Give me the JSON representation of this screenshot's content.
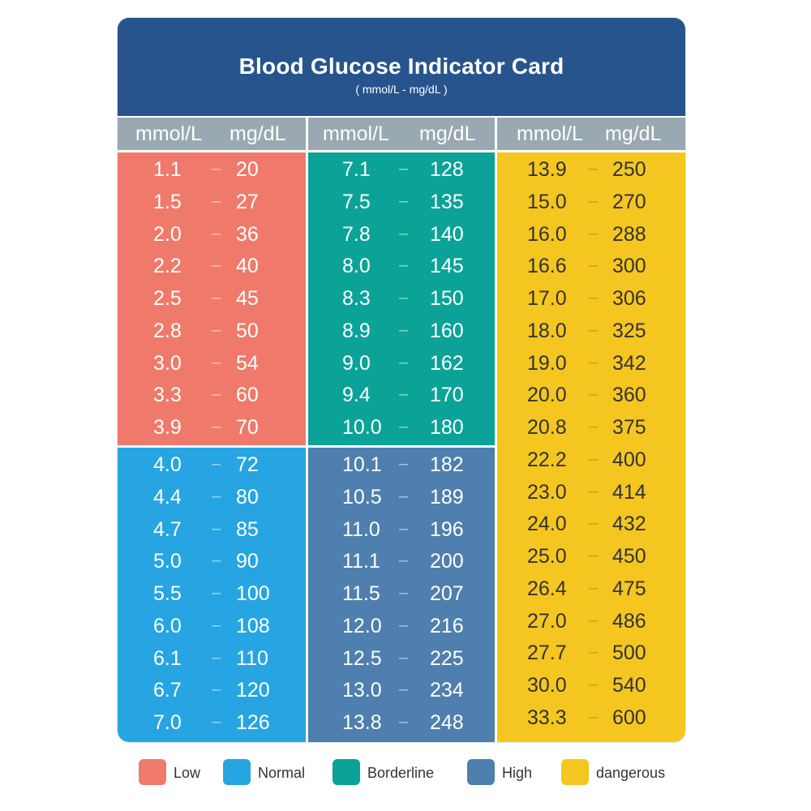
{
  "title": "Blood Glucose Indicator Card",
  "subtitle": "( mmol/L - mg/dL )",
  "colors": {
    "header": "#27548d",
    "column_header": "#9aa9b1",
    "low": "#ef7a6b",
    "normal": "#27a5e2",
    "borderline": "#0ba398",
    "high": "#4f7fae",
    "dangerous": "#f4c61f"
  },
  "columns": [
    {
      "mmol_label": "mmol/L",
      "mgdl_label": "mg/dL"
    },
    {
      "mmol_label": "mmol/L",
      "mgdl_label": "mg/dL"
    },
    {
      "mmol_label": "mmol/L",
      "mgdl_label": "mg/dL"
    }
  ],
  "separator": "–",
  "blocks": [
    {
      "category": "low",
      "rows": [
        {
          "mmol": "1.1",
          "mgdl": "20"
        },
        {
          "mmol": "1.5",
          "mgdl": "27"
        },
        {
          "mmol": "2.0",
          "mgdl": "36"
        },
        {
          "mmol": "2.2",
          "mgdl": "40"
        },
        {
          "mmol": "2.5",
          "mgdl": "45"
        },
        {
          "mmol": "2.8",
          "mgdl": "50"
        },
        {
          "mmol": "3.0",
          "mgdl": "54"
        },
        {
          "mmol": "3.3",
          "mgdl": "60"
        },
        {
          "mmol": "3.9",
          "mgdl": "70"
        }
      ]
    },
    {
      "category": "normal",
      "rows": [
        {
          "mmol": "4.0",
          "mgdl": "72"
        },
        {
          "mmol": "4.4",
          "mgdl": "80"
        },
        {
          "mmol": "4.7",
          "mgdl": "85"
        },
        {
          "mmol": "5.0",
          "mgdl": "90"
        },
        {
          "mmol": "5.5",
          "mgdl": "100"
        },
        {
          "mmol": "6.0",
          "mgdl": "108"
        },
        {
          "mmol": "6.1",
          "mgdl": "110"
        },
        {
          "mmol": "6.7",
          "mgdl": "120"
        },
        {
          "mmol": "7.0",
          "mgdl": "126"
        }
      ]
    },
    {
      "category": "borderline",
      "rows": [
        {
          "mmol": "7.1",
          "mgdl": "128"
        },
        {
          "mmol": "7.5",
          "mgdl": "135"
        },
        {
          "mmol": "7.8",
          "mgdl": "140"
        },
        {
          "mmol": "8.0",
          "mgdl": "145"
        },
        {
          "mmol": "8.3",
          "mgdl": "150"
        },
        {
          "mmol": "8.9",
          "mgdl": "160"
        },
        {
          "mmol": "9.0",
          "mgdl": "162"
        },
        {
          "mmol": "9.4",
          "mgdl": "170"
        },
        {
          "mmol": "10.0",
          "mgdl": "180"
        }
      ]
    },
    {
      "category": "high",
      "rows": [
        {
          "mmol": "10.1",
          "mgdl": "182"
        },
        {
          "mmol": "10.5",
          "mgdl": "189"
        },
        {
          "mmol": "11.0",
          "mgdl": "196"
        },
        {
          "mmol": "11.1",
          "mgdl": "200"
        },
        {
          "mmol": "11.5",
          "mgdl": "207"
        },
        {
          "mmol": "12.0",
          "mgdl": "216"
        },
        {
          "mmol": "12.5",
          "mgdl": "225"
        },
        {
          "mmol": "13.0",
          "mgdl": "234"
        },
        {
          "mmol": "13.8",
          "mgdl": "248"
        }
      ]
    },
    {
      "category": "dangerous",
      "rows": [
        {
          "mmol": "13.9",
          "mgdl": "250"
        },
        {
          "mmol": "15.0",
          "mgdl": "270"
        },
        {
          "mmol": "16.0",
          "mgdl": "288"
        },
        {
          "mmol": "16.6",
          "mgdl": "300"
        },
        {
          "mmol": "17.0",
          "mgdl": "306"
        },
        {
          "mmol": "18.0",
          "mgdl": "325"
        },
        {
          "mmol": "19.0",
          "mgdl": "342"
        },
        {
          "mmol": "20.0",
          "mgdl": "360"
        },
        {
          "mmol": "20.8",
          "mgdl": "375"
        },
        {
          "mmol": "22.2",
          "mgdl": "400"
        },
        {
          "mmol": "23.0",
          "mgdl": "414"
        },
        {
          "mmol": "24.0",
          "mgdl": "432"
        },
        {
          "mmol": "25.0",
          "mgdl": "450"
        },
        {
          "mmol": "26.4",
          "mgdl": "475"
        },
        {
          "mmol": "27.0",
          "mgdl": "486"
        },
        {
          "mmol": "27.7",
          "mgdl": "500"
        },
        {
          "mmol": "30.0",
          "mgdl": "540"
        },
        {
          "mmol": "33.3",
          "mgdl": "600"
        }
      ]
    }
  ],
  "legend": [
    {
      "label": "Low",
      "category": "low"
    },
    {
      "label": "Normal",
      "category": "normal"
    },
    {
      "label": "Borderline",
      "category": "borderline"
    },
    {
      "label": "High",
      "category": "high"
    },
    {
      "label": "dangerous",
      "category": "dangerous"
    }
  ]
}
